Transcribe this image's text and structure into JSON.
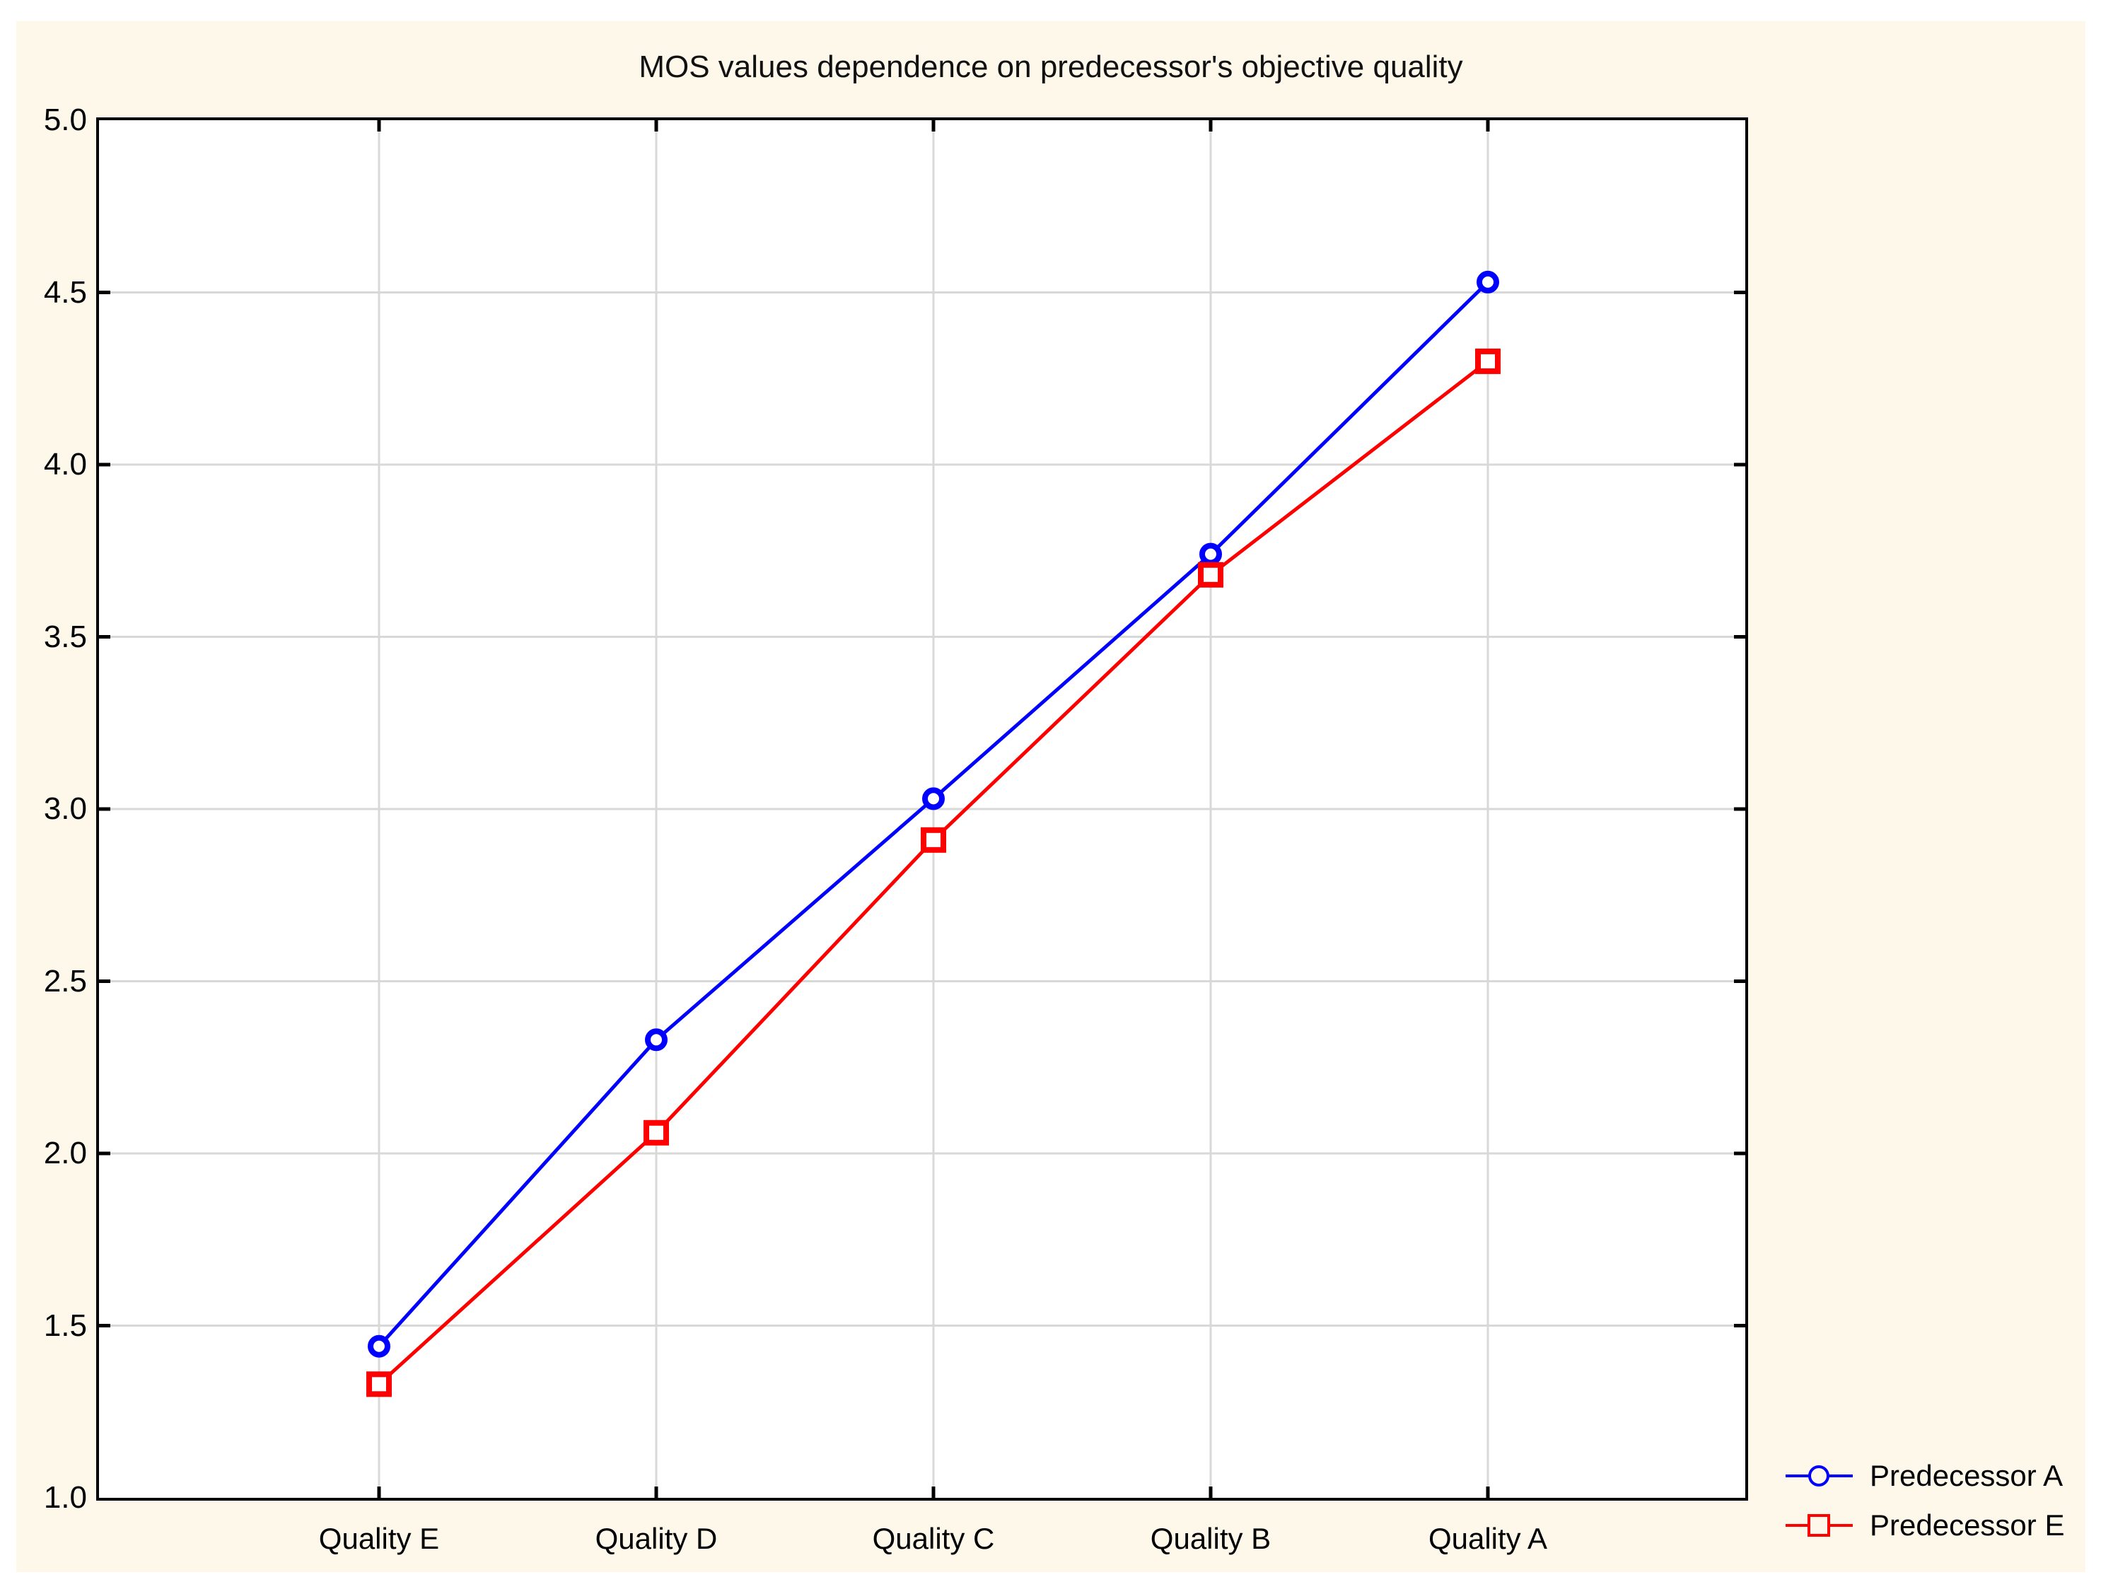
{
  "page": {
    "background": "#FFFFFF",
    "figure_background": "#FDF8E9"
  },
  "chart_data": {
    "type": "line",
    "title": "MOS values dependence on predecessor's objective quality",
    "categories": [
      "Quality E",
      "Quality D",
      "Quality C",
      "Quality B",
      "Quality A"
    ],
    "series": [
      {
        "name": "Predecessor A",
        "marker": "circle",
        "color": "#0000FF",
        "values": [
          1.44,
          2.33,
          3.03,
          3.74,
          4.53
        ]
      },
      {
        "name": "Predecessor E",
        "marker": "square",
        "color": "#FF0000",
        "values": [
          1.33,
          2.06,
          2.91,
          3.68,
          4.3
        ]
      }
    ],
    "xlabel": "",
    "ylabel": "",
    "ylim": [
      1.0,
      5.0
    ],
    "ytick_step": 0.5,
    "ytick_labels": [
      "5.0",
      "4.5",
      "4.0",
      "3.5",
      "3.0",
      "2.5",
      "2.0",
      "1.5",
      "1.0"
    ],
    "grid": true,
    "gridline_color": "#D8D8D8",
    "axis_color": "#000000",
    "marker_fill": "#FFFFFF",
    "legend": {
      "position": "bottom-right"
    }
  }
}
